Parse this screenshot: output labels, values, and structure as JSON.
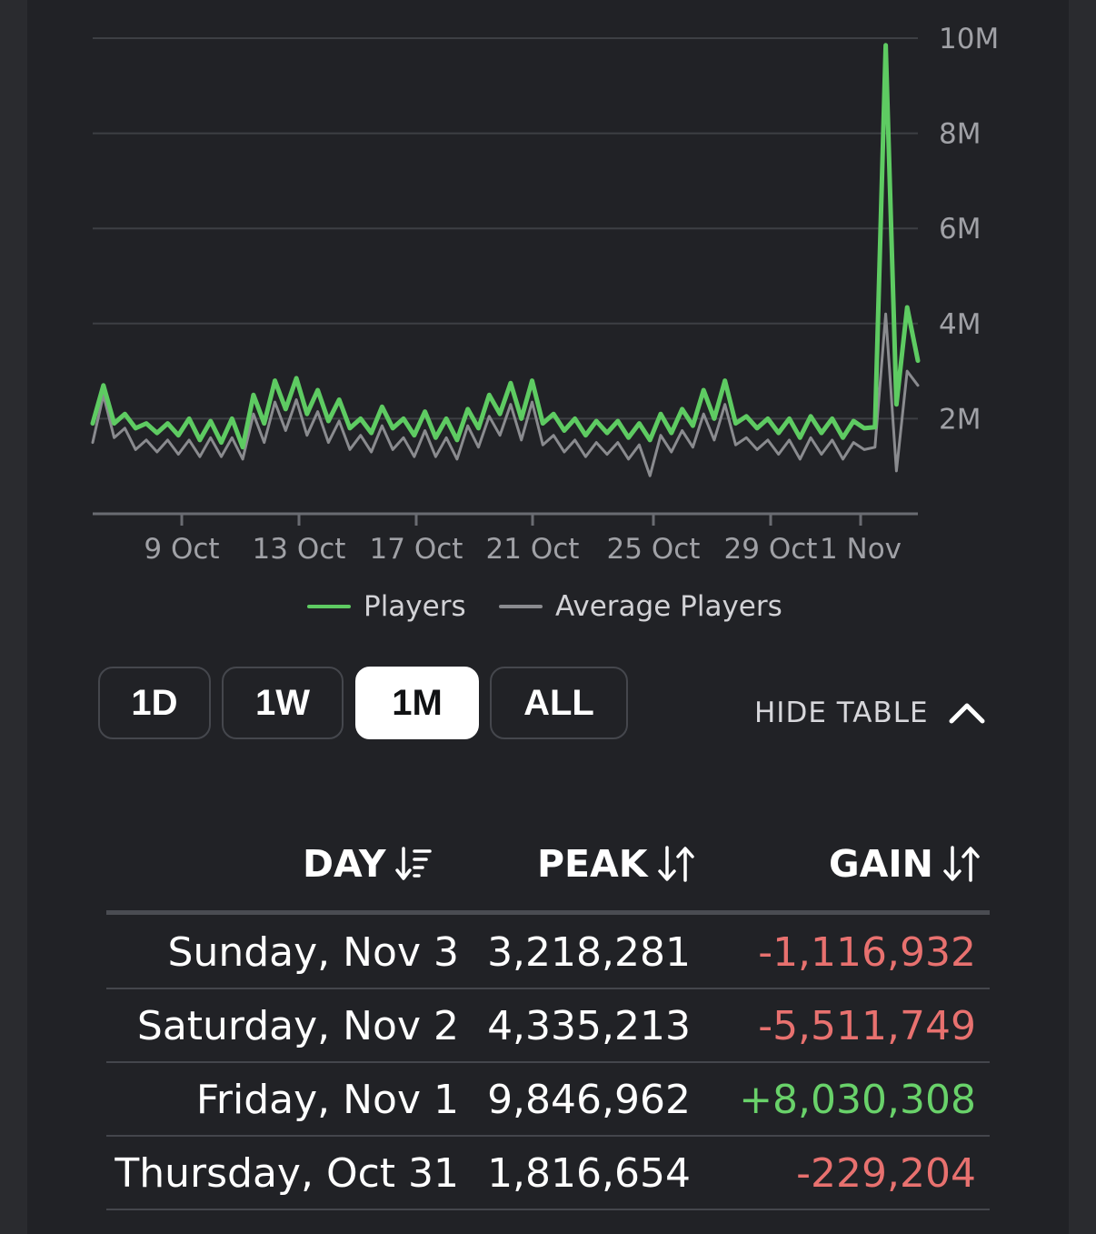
{
  "chart_data": {
    "type": "line",
    "y_ticks": [
      "2M",
      "4M",
      "6M",
      "8M",
      "10M"
    ],
    "y_tick_values": [
      2000000,
      4000000,
      6000000,
      8000000,
      10000000
    ],
    "ylim": [
      0,
      10000000
    ],
    "x_ticks": [
      "9 Oct",
      "13 Oct",
      "17 Oct",
      "21 Oct",
      "25 Oct",
      "29 Oct",
      "1 Nov"
    ],
    "grid": true,
    "legend_position": "bottom-center",
    "series": [
      {
        "name": "Players",
        "color": "#5ecb62",
        "values": [
          1.9,
          2.7,
          1.9,
          2.1,
          1.8,
          1.9,
          1.7,
          1.9,
          1.65,
          2.0,
          1.55,
          1.95,
          1.5,
          2.0,
          1.4,
          2.5,
          1.9,
          2.8,
          2.2,
          2.85,
          2.1,
          2.6,
          1.95,
          2.4,
          1.8,
          2.0,
          1.7,
          2.25,
          1.8,
          2.0,
          1.65,
          2.15,
          1.6,
          2.0,
          1.55,
          2.2,
          1.8,
          2.5,
          2.1,
          2.75,
          2.0,
          2.8,
          1.9,
          2.1,
          1.75,
          2.0,
          1.65,
          1.95,
          1.7,
          1.95,
          1.6,
          1.9,
          1.55,
          2.1,
          1.7,
          2.2,
          1.85,
          2.6,
          2.0,
          2.8,
          1.9,
          2.05,
          1.8,
          2.0,
          1.7,
          2.0,
          1.6,
          2.05,
          1.7,
          2.0,
          1.6,
          1.95,
          1.8,
          1.82,
          9.85,
          2.3,
          4.34,
          3.22
        ]
      },
      {
        "name": "Average Players",
        "color": "#8a8b8f",
        "values": [
          1.5,
          2.5,
          1.6,
          1.8,
          1.35,
          1.55,
          1.3,
          1.55,
          1.25,
          1.55,
          1.2,
          1.6,
          1.2,
          1.6,
          1.15,
          2.1,
          1.5,
          2.35,
          1.75,
          2.4,
          1.65,
          2.15,
          1.5,
          1.95,
          1.35,
          1.65,
          1.3,
          1.85,
          1.35,
          1.6,
          1.2,
          1.75,
          1.2,
          1.6,
          1.15,
          1.85,
          1.4,
          2.05,
          1.65,
          2.3,
          1.55,
          2.35,
          1.45,
          1.65,
          1.3,
          1.55,
          1.2,
          1.5,
          1.25,
          1.5,
          1.15,
          1.45,
          0.8,
          1.65,
          1.3,
          1.75,
          1.4,
          2.1,
          1.55,
          2.3,
          1.45,
          1.6,
          1.35,
          1.55,
          1.25,
          1.55,
          1.15,
          1.6,
          1.25,
          1.55,
          1.15,
          1.5,
          1.35,
          1.4,
          4.2,
          0.9,
          3.0,
          2.7
        ]
      }
    ]
  },
  "range_buttons": [
    "1D",
    "1W",
    "1M",
    "ALL"
  ],
  "active_range": "1M",
  "hide_table_label": "HIDE TABLE",
  "table": {
    "headers": {
      "day": "DAY",
      "peak": "PEAK",
      "gain": "GAIN"
    },
    "rows": [
      {
        "day": "Sunday, Nov 3",
        "peak": "3,218,281",
        "gain": "-1,116,932",
        "gain_sign": "neg"
      },
      {
        "day": "Saturday, Nov 2",
        "peak": "4,335,213",
        "gain": "-5,511,749",
        "gain_sign": "neg"
      },
      {
        "day": "Friday, Nov 1",
        "peak": "9,846,962",
        "gain": "+8,030,308",
        "gain_sign": "pos"
      },
      {
        "day": "Thursday, Oct 31",
        "peak": "1,816,654",
        "gain": "-229,204",
        "gain_sign": "neg"
      }
    ]
  },
  "colors": {
    "background": "#212226",
    "players_line": "#5ecb62",
    "average_line": "#8a8b8f",
    "negative": "#e8716f",
    "positive": "#69d26a"
  }
}
